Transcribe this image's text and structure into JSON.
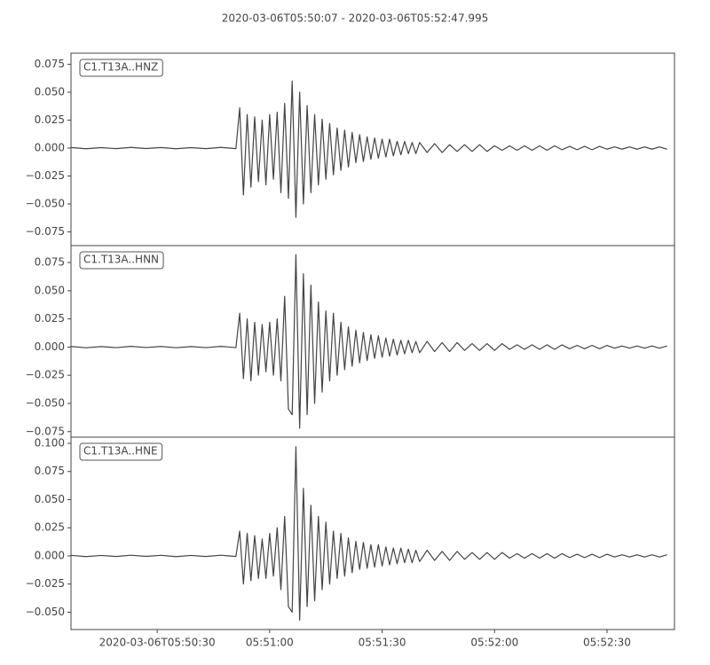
{
  "chart_data": [
    {
      "type": "line",
      "title": "2020-03-06T05:50:07  -  2020-03-06T05:52:47.995",
      "x": [
        7,
        11,
        15,
        19,
        23,
        27,
        31,
        35,
        39,
        43,
        47,
        51,
        52,
        53,
        54,
        55,
        56,
        57,
        58,
        59,
        60,
        61,
        62,
        63,
        64,
        65,
        66,
        67,
        68,
        69,
        70,
        71,
        72,
        73,
        74,
        75,
        76,
        77,
        78,
        79,
        80,
        81,
        82,
        83,
        84,
        85,
        86,
        87,
        88,
        89,
        90,
        91,
        92,
        93,
        94,
        95,
        96,
        97,
        98,
        99,
        100,
        102,
        104,
        106,
        108,
        110,
        112,
        114,
        116,
        118,
        120,
        122,
        124,
        126,
        128,
        130,
        132,
        134,
        136,
        138,
        140,
        142,
        144,
        146,
        148,
        150,
        152,
        154,
        156,
        158,
        160,
        162,
        164,
        166
      ],
      "series": [
        {
          "name": "C1.T13A..HNZ",
          "color": "#444444",
          "values": [
            0.0005,
            -0.0006,
            0.0004,
            -0.0005,
            0.0006,
            -0.0004,
            0.0005,
            -0.0006,
            0.0004,
            -0.0005,
            0.0006,
            -0.0005,
            0.036,
            -0.042,
            0.03,
            -0.035,
            0.028,
            -0.03,
            0.025,
            -0.033,
            0.03,
            -0.028,
            0.032,
            -0.04,
            0.04,
            -0.045,
            0.06,
            -0.062,
            0.05,
            -0.05,
            0.038,
            -0.04,
            0.03,
            -0.033,
            0.026,
            -0.028,
            0.022,
            -0.024,
            0.018,
            -0.02,
            0.016,
            -0.017,
            0.014,
            -0.013,
            0.012,
            -0.012,
            0.01,
            -0.01,
            0.009,
            -0.009,
            0.008,
            -0.008,
            0.008,
            -0.007,
            0.006,
            -0.006,
            0.006,
            -0.005,
            0.005,
            -0.005,
            0.005,
            -0.004,
            0.004,
            -0.004,
            0.003,
            -0.003,
            0.003,
            -0.003,
            0.003,
            -0.003,
            0.002,
            -0.002,
            0.002,
            -0.002,
            0.002,
            -0.002,
            0.002,
            -0.002,
            0.002,
            -0.0015,
            0.0015,
            -0.0015,
            0.0015,
            -0.0015,
            0.0015,
            -0.001,
            0.001,
            -0.001,
            0.001,
            -0.001,
            0.001,
            -0.001,
            0.001,
            -0.001
          ]
        }
      ],
      "xlim": [
        7,
        167.995
      ],
      "ylim": [
        -0.0873,
        0.0849
      ],
      "yticks": [
        {
          "value": -0.075,
          "label": "−0.075"
        },
        {
          "value": -0.05,
          "label": "−0.050"
        },
        {
          "value": -0.025,
          "label": "−0.025"
        },
        {
          "value": 0,
          "label": "0.000"
        },
        {
          "value": 0.025,
          "label": "0.025"
        },
        {
          "value": 0.05,
          "label": "0.050"
        },
        {
          "value": 0.075,
          "label": "0.075"
        }
      ]
    },
    {
      "type": "line",
      "x": [
        7,
        11,
        15,
        19,
        23,
        27,
        31,
        35,
        39,
        43,
        47,
        51,
        52,
        53,
        54,
        55,
        56,
        57,
        58,
        59,
        60,
        61,
        62,
        63,
        64,
        65,
        66,
        67,
        68,
        69,
        70,
        71,
        72,
        73,
        74,
        75,
        76,
        77,
        78,
        79,
        80,
        81,
        82,
        83,
        84,
        85,
        86,
        87,
        88,
        89,
        90,
        91,
        92,
        93,
        94,
        95,
        96,
        97,
        98,
        99,
        100,
        102,
        104,
        106,
        108,
        110,
        112,
        114,
        116,
        118,
        120,
        122,
        124,
        126,
        128,
        130,
        132,
        134,
        136,
        138,
        140,
        142,
        144,
        146,
        148,
        150,
        152,
        154,
        156,
        158,
        160,
        162,
        164,
        166
      ],
      "series": [
        {
          "name": "C1.T13A..HNN",
          "color": "#444444",
          "values": [
            0.0005,
            -0.0006,
            0.0004,
            -0.0005,
            0.0006,
            -0.0004,
            0.0005,
            -0.0006,
            0.0004,
            -0.0005,
            0.0006,
            -0.0005,
            0.03,
            -0.028,
            0.025,
            -0.03,
            0.022,
            -0.025,
            0.02,
            -0.022,
            0.022,
            -0.025,
            0.025,
            -0.03,
            0.045,
            -0.055,
            -0.06,
            0.082,
            -0.072,
            0.065,
            -0.06,
            0.055,
            -0.05,
            0.04,
            -0.04,
            0.032,
            -0.03,
            0.03,
            -0.025,
            0.022,
            -0.02,
            0.018,
            -0.017,
            0.015,
            -0.014,
            0.013,
            -0.012,
            0.011,
            -0.01,
            0.01,
            -0.009,
            0.008,
            -0.008,
            0.007,
            -0.007,
            0.006,
            -0.006,
            0.006,
            -0.005,
            0.005,
            -0.005,
            0.005,
            -0.004,
            0.004,
            -0.004,
            0.004,
            -0.003,
            0.003,
            -0.003,
            0.003,
            -0.003,
            0.003,
            -0.002,
            0.002,
            -0.002,
            0.002,
            -0.002,
            0.002,
            -0.002,
            0.002,
            -0.0015,
            0.0015,
            -0.0015,
            0.0015,
            -0.0015,
            0.0015,
            -0.001,
            0.001,
            -0.001,
            0.001,
            -0.001,
            0.001,
            -0.001,
            0.001
          ]
        }
      ],
      "xlim": [
        7,
        167.995
      ],
      "ylim": [
        -0.0799,
        0.09
      ],
      "yticks": [
        {
          "value": -0.075,
          "label": "−0.075"
        },
        {
          "value": -0.05,
          "label": "−0.050"
        },
        {
          "value": -0.025,
          "label": "−0.025"
        },
        {
          "value": 0,
          "label": "0.000"
        },
        {
          "value": 0.025,
          "label": "0.025"
        },
        {
          "value": 0.05,
          "label": "0.050"
        },
        {
          "value": 0.075,
          "label": "0.075"
        }
      ]
    },
    {
      "type": "line",
      "x": [
        7,
        11,
        15,
        19,
        23,
        27,
        31,
        35,
        39,
        43,
        47,
        51,
        52,
        53,
        54,
        55,
        56,
        57,
        58,
        59,
        60,
        61,
        62,
        63,
        64,
        65,
        66,
        67,
        68,
        69,
        70,
        71,
        72,
        73,
        74,
        75,
        76,
        77,
        78,
        79,
        80,
        81,
        82,
        83,
        84,
        85,
        86,
        87,
        88,
        89,
        90,
        91,
        92,
        93,
        94,
        95,
        96,
        97,
        98,
        99,
        100,
        102,
        104,
        106,
        108,
        110,
        112,
        114,
        116,
        118,
        120,
        122,
        124,
        126,
        128,
        130,
        132,
        134,
        136,
        138,
        140,
        142,
        144,
        146,
        148,
        150,
        152,
        154,
        156,
        158,
        160,
        162,
        164,
        166
      ],
      "series": [
        {
          "name": "C1.T13A..HNE",
          "color": "#444444",
          "values": [
            0.0005,
            -0.0006,
            0.0004,
            -0.0005,
            0.0006,
            -0.0004,
            0.0005,
            -0.0006,
            0.0004,
            -0.0005,
            0.0006,
            -0.0005,
            0.022,
            -0.025,
            0.02,
            -0.022,
            0.018,
            -0.02,
            0.015,
            -0.02,
            0.02,
            -0.018,
            0.025,
            -0.03,
            0.035,
            -0.045,
            -0.05,
            0.097,
            -0.057,
            0.06,
            -0.045,
            0.045,
            -0.04,
            0.035,
            -0.03,
            0.03,
            -0.025,
            0.022,
            -0.02,
            0.02,
            -0.018,
            0.016,
            -0.015,
            0.013,
            -0.012,
            0.012,
            -0.011,
            0.01,
            -0.01,
            0.01,
            -0.009,
            0.008,
            -0.008,
            0.007,
            -0.007,
            0.007,
            -0.006,
            0.006,
            -0.006,
            0.005,
            -0.005,
            0.005,
            -0.004,
            0.004,
            -0.004,
            0.004,
            -0.003,
            0.003,
            -0.003,
            0.003,
            -0.003,
            0.003,
            -0.002,
            0.002,
            -0.002,
            0.002,
            -0.002,
            0.002,
            -0.002,
            0.002,
            -0.0015,
            0.0015,
            -0.0015,
            0.0015,
            -0.0015,
            0.0015,
            -0.001,
            0.001,
            -0.001,
            0.001,
            -0.001,
            0.001,
            -0.001,
            0.001
          ]
        }
      ],
      "xlim": [
        7,
        167.995
      ],
      "ylim": [
        -0.0654,
        0.1055
      ],
      "yticks": [
        {
          "value": -0.05,
          "label": "−0.050"
        },
        {
          "value": -0.025,
          "label": "−0.025"
        },
        {
          "value": 0,
          "label": "0.000"
        },
        {
          "value": 0.025,
          "label": "0.025"
        },
        {
          "value": 0.05,
          "label": "0.050"
        },
        {
          "value": 0.075,
          "label": "0.075"
        },
        {
          "value": 0.1,
          "label": "0.100"
        }
      ],
      "xticks": [
        {
          "value": 30,
          "label": "2020-03-06T05:50:30"
        },
        {
          "value": 60,
          "label": "05:51:00"
        },
        {
          "value": 90,
          "label": "05:51:30"
        },
        {
          "value": 120,
          "label": "05:52:00"
        },
        {
          "value": 150,
          "label": "05:52:30"
        }
      ]
    }
  ]
}
